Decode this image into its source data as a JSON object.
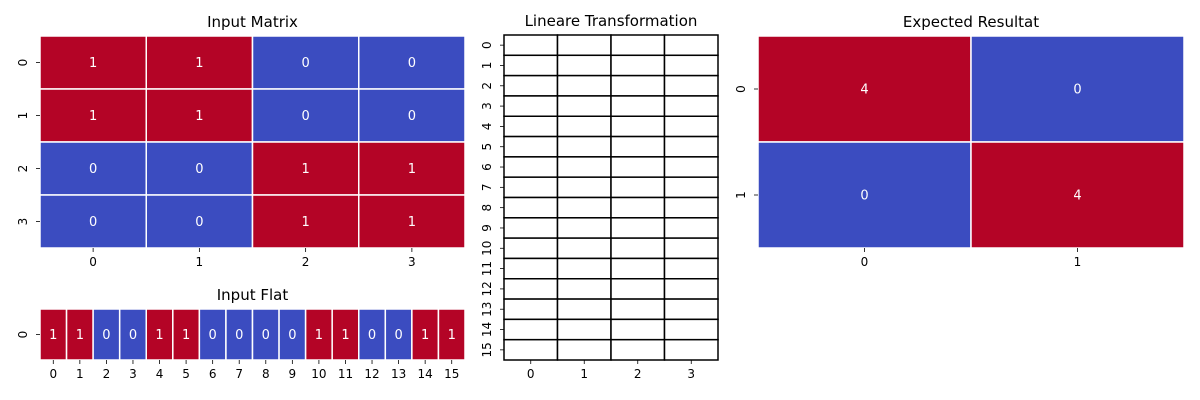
{
  "colors": {
    "one": "#b40426",
    "zero": "#3b4cc0",
    "label": "#ffffff",
    "empty": "#ffffff",
    "grid_line": "#000000"
  },
  "chart_data": [
    {
      "type": "heatmap",
      "id": "input_matrix",
      "title": "Input Matrix",
      "x_ticks": [
        "0",
        "1",
        "2",
        "3"
      ],
      "y_ticks": [
        "0",
        "1",
        "2",
        "3"
      ],
      "values": [
        [
          1,
          1,
          0,
          0
        ],
        [
          1,
          1,
          0,
          0
        ],
        [
          0,
          0,
          1,
          1
        ],
        [
          0,
          0,
          1,
          1
        ]
      ],
      "annotated": true,
      "vmin": 0,
      "vmax": 1
    },
    {
      "type": "heatmap",
      "id": "input_flat",
      "title": "Input Flat",
      "x_ticks": [
        "0",
        "1",
        "2",
        "3",
        "4",
        "5",
        "6",
        "7",
        "8",
        "9",
        "10",
        "11",
        "12",
        "13",
        "14",
        "15"
      ],
      "y_ticks": [
        "0"
      ],
      "values": [
        [
          1,
          1,
          0,
          0,
          1,
          1,
          0,
          0,
          0,
          0,
          1,
          1,
          0,
          0,
          1,
          1
        ]
      ],
      "annotated": true,
      "vmin": 0,
      "vmax": 1
    },
    {
      "type": "heatmap",
      "id": "linear_transformation",
      "title": "Lineare Transformation",
      "x_ticks": [
        "0",
        "1",
        "2",
        "3"
      ],
      "y_ticks": [
        "0",
        "1",
        "2",
        "3",
        "4",
        "5",
        "6",
        "7",
        "8",
        "9",
        "10",
        "11",
        "12",
        "13",
        "14",
        "15"
      ],
      "values": "empty",
      "annotated": false
    },
    {
      "type": "heatmap",
      "id": "expected_result",
      "title": "Expected Resultat",
      "x_ticks": [
        "0",
        "1"
      ],
      "y_ticks": [
        "0",
        "1"
      ],
      "values": [
        [
          4,
          0
        ],
        [
          0,
          4
        ]
      ],
      "annotated": true,
      "vmin": 0,
      "vmax": 4
    }
  ]
}
